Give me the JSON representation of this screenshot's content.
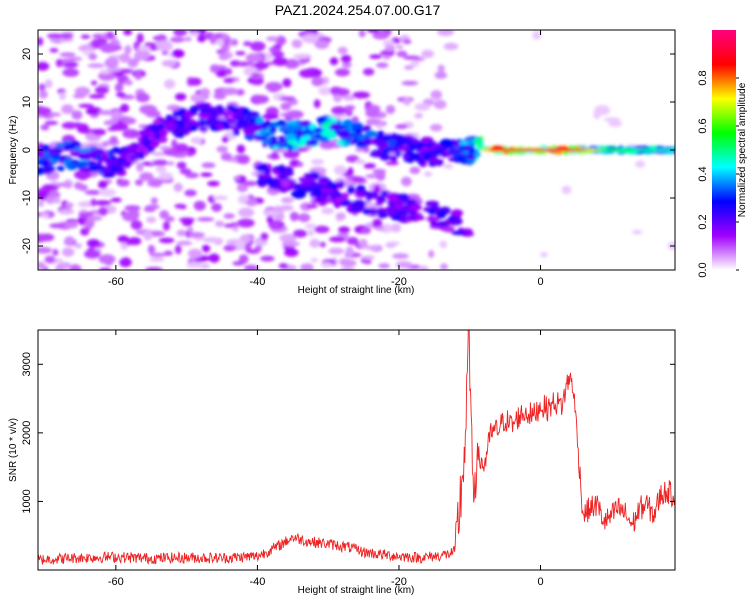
{
  "title": "PAZ1.2024.254.07.00.G17",
  "chart_data": [
    {
      "type": "heatmap",
      "xlabel": "Height of straight line (km)",
      "ylabel": "Frequency (Hz)",
      "xlim": [
        -71,
        19
      ],
      "ylim": [
        -25,
        25
      ],
      "xticks": [
        "-60",
        "-40",
        "-20",
        "0"
      ],
      "yticks": [
        "-20",
        "-10",
        "0",
        "10",
        "20"
      ],
      "colorbar": {
        "label": "Normalized spectral amplitude",
        "range": [
          0,
          1
        ],
        "ticks": [
          "0.0",
          "0.2",
          "0.4",
          "0.6",
          "0.8"
        ],
        "colors": [
          "#ffffff",
          "#a000ff",
          "#0000ff",
          "#00ffff",
          "#00ff00",
          "#ffff00",
          "#ff0000",
          "#ff0080"
        ]
      },
      "ridge": {
        "x": [
          -70,
          -66,
          -62,
          -58,
          -54,
          -50,
          -46,
          -42,
          -38,
          -34,
          -30,
          -26,
          -22,
          -18,
          -14,
          -10,
          -6,
          -2,
          2,
          6,
          10,
          14,
          19
        ],
        "f": [
          -2,
          -1,
          -3,
          -2,
          4,
          6,
          7,
          6,
          3,
          3,
          4,
          3,
          1,
          0,
          -1,
          0,
          0,
          0,
          0,
          0,
          0,
          0,
          0
        ],
        "amplitude": [
          0.35,
          0.4,
          0.35,
          0.25,
          0.25,
          0.3,
          0.3,
          0.3,
          0.5,
          0.45,
          0.5,
          0.4,
          0.35,
          0.3,
          0.3,
          0.45,
          0.9,
          0.95,
          0.95,
          0.8,
          0.55,
          0.5,
          0.45
        ]
      }
    },
    {
      "type": "line",
      "xlabel": "Height of straight line (km)",
      "ylabel": "SNR (10 * v/v)",
      "xlim": [
        -71,
        19
      ],
      "ylim": [
        0,
        3500
      ],
      "xticks": [
        "-60",
        "-40",
        "-20",
        "0"
      ],
      "yticks": [
        "1000",
        "2000",
        "3000"
      ],
      "series": [
        {
          "color": "#ee2222",
          "x": [
            -71,
            -65,
            -60,
            -55,
            -50,
            -45,
            -40,
            -37,
            -35,
            -33,
            -30,
            -27,
            -25,
            -22,
            -20,
            -17,
            -15,
            -13,
            -12,
            -11,
            -10.5,
            -10.2,
            -10,
            -9.8,
            -9.5,
            -9,
            -8,
            -7,
            -6,
            -5,
            -4,
            -3,
            -2,
            -1,
            0,
            1,
            2,
            3,
            3.5,
            4,
            4.5,
            5,
            5.5,
            6,
            7,
            8,
            9,
            10,
            11,
            12,
            13,
            14,
            15,
            16,
            17,
            18,
            19
          ],
          "y": [
            150,
            180,
            190,
            170,
            180,
            175,
            200,
            350,
            480,
            420,
            380,
            330,
            260,
            220,
            200,
            180,
            200,
            230,
            280,
            1400,
            2100,
            3450,
            3200,
            1800,
            1200,
            1700,
            1500,
            2000,
            2050,
            2200,
            2100,
            2250,
            2300,
            2250,
            2400,
            2350,
            2450,
            2400,
            2600,
            2800,
            2750,
            2200,
            1500,
            800,
            900,
            950,
            700,
            780,
            900,
            820,
            650,
            900,
            950,
            800,
            1100,
            1150,
            1050
          ]
        }
      ]
    }
  ]
}
